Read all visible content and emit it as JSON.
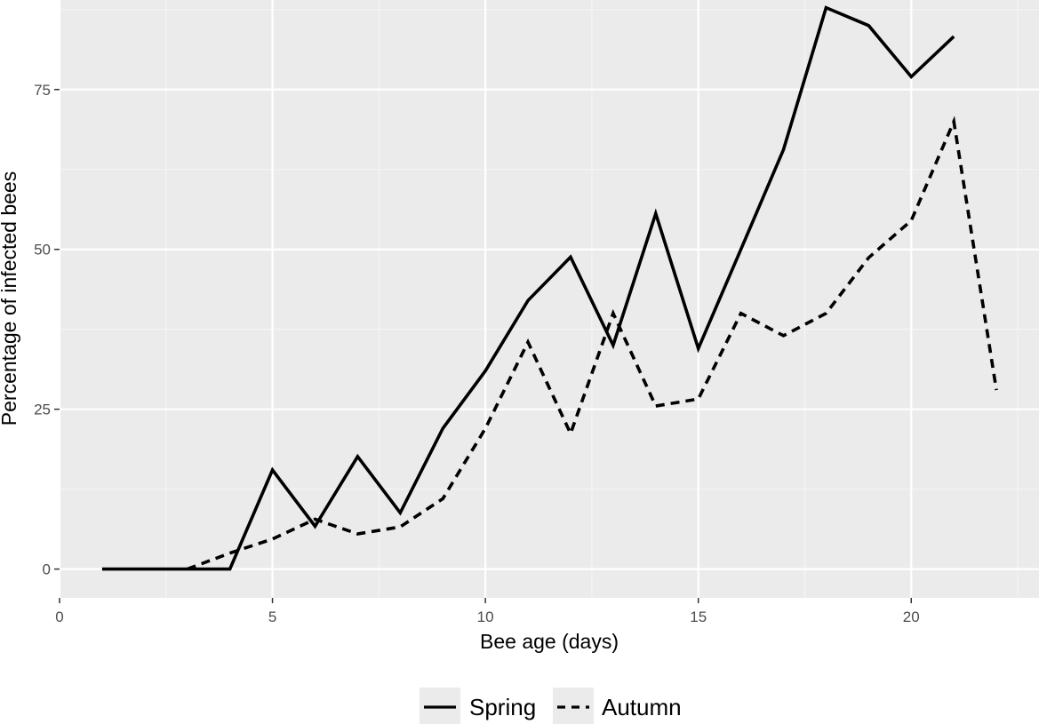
{
  "chart_data": {
    "type": "line",
    "xlabel": "Bee age (days)",
    "ylabel": "Percentage of infected bees",
    "xlim": [
      0,
      23
    ],
    "ylim": [
      -4.5,
      89
    ],
    "x_ticks": [
      0,
      5,
      10,
      15,
      20
    ],
    "y_ticks": [
      0,
      25,
      50,
      75
    ],
    "x_tick_labels": [
      "0",
      "5",
      "10",
      "15",
      "20"
    ],
    "y_tick_labels": [
      "0",
      "25",
      "50",
      "75"
    ],
    "grid": true,
    "legend_position": "bottom",
    "series": [
      {
        "name": "Spring",
        "line_style": "solid",
        "color": "#000000",
        "x": [
          1,
          2,
          3,
          4,
          5,
          6,
          7,
          8,
          9,
          10,
          11,
          12,
          13,
          14,
          15,
          16,
          17,
          18,
          19,
          20,
          21
        ],
        "y": [
          0,
          0,
          0,
          0,
          15.5,
          6.7,
          17.6,
          8.8,
          22,
          31,
          42,
          48.8,
          35,
          55.6,
          34.5,
          50,
          65.6,
          87.8,
          85,
          77,
          83.3
        ]
      },
      {
        "name": "Autumn",
        "line_style": "dashed",
        "color": "#000000",
        "x": [
          3,
          4,
          5,
          6,
          7,
          8,
          9,
          10,
          11,
          12,
          13,
          14,
          15,
          16,
          17,
          18,
          19,
          20,
          21,
          22
        ],
        "y": [
          0,
          2.5,
          4.7,
          7.8,
          5.5,
          6.6,
          11,
          22,
          35.5,
          21.2,
          40,
          25.5,
          26.6,
          40,
          36.5,
          40,
          48.7,
          54.5,
          70,
          28
        ]
      }
    ]
  },
  "colors": {
    "panel_background": "#ebebeb",
    "grid_major": "#ffffff",
    "grid_minor": "#f5f5f5",
    "line": "#000000",
    "tick_text": "#4d4d4d"
  }
}
